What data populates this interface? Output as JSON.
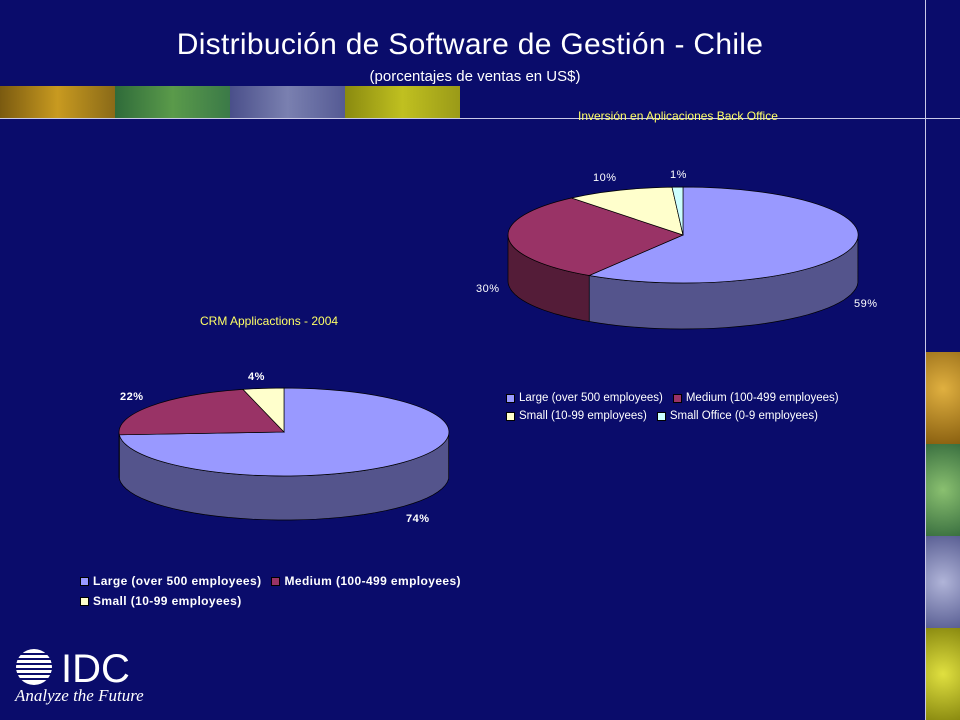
{
  "slide": {
    "title": "Distribución de Software de Gestión - Chile",
    "subtitle": "(porcentajes de ventas en US$)",
    "colors": {
      "background": "#0a0c6b",
      "title_accent": "#ffff66"
    }
  },
  "logo": {
    "name": "IDC",
    "tagline": "Analyze the Future"
  },
  "chart_data": [
    {
      "type": "pie",
      "title": "Inversión en Aplicaciones Back Office",
      "categories": [
        "Large (over 500 employees)",
        "Medium (100-499 employees)",
        "Small (10-99 employees)",
        "Small Office (0-9 employees)"
      ],
      "values": [
        59,
        30,
        10,
        1
      ],
      "labels": [
        "59%",
        "30%",
        "10%",
        "1%"
      ],
      "colors": [
        "#9999ff",
        "#993366",
        "#ffffcc",
        "#ccffff"
      ],
      "legend": "bottom-right"
    },
    {
      "type": "pie",
      "title": "CRM Applicactions - 2004",
      "categories": [
        "Large (over 500 employees)",
        "Medium (100-499 employees)",
        "Small (10-99 employees)"
      ],
      "values": [
        74,
        22,
        4
      ],
      "labels": [
        "74%",
        "22%",
        "4%"
      ],
      "colors": [
        "#9999ff",
        "#993366",
        "#ffffcc"
      ],
      "legend": "bottom"
    }
  ]
}
